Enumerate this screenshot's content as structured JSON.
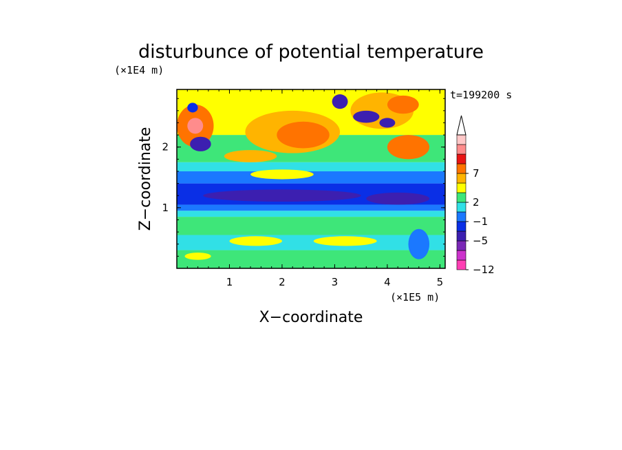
{
  "chart_data": {
    "type": "heatmap",
    "title": "disturbunce of potential temperature",
    "xlabel": "X−coordinate",
    "ylabel": "Z−coordinate",
    "x_unit": "(×1E5 m)",
    "y_unit": "(×1E4 m)",
    "time_label": "t=199200 s",
    "xlim": [
      0.0,
      5.1
    ],
    "ylim": [
      0.0,
      2.95
    ],
    "x_ticks": [
      1,
      2,
      3,
      4,
      5
    ],
    "y_ticks": [
      1,
      2
    ],
    "colorbar": {
      "tick_labels": [
        "7",
        "2",
        "−1",
        "−5",
        "−12"
      ],
      "tick_level_index": [
        10,
        7,
        5,
        3,
        0
      ],
      "colors": [
        "#ff3fb4",
        "#cc33cc",
        "#7a28b6",
        "#3c1fb0",
        "#0a2fe6",
        "#1b78ff",
        "#31e0e6",
        "#3ee679",
        "#ffff00",
        "#ffb400",
        "#ff7300",
        "#e81414",
        "#ff8c8c",
        "#ffc8c8"
      ],
      "extend_max": true
    },
    "bands": [
      {
        "z": [
          0.0,
          0.3
        ],
        "level": 7
      },
      {
        "z": [
          0.3,
          0.55
        ],
        "level": 6
      },
      {
        "z": [
          0.55,
          0.85
        ],
        "level": 7
      },
      {
        "z": [
          0.85,
          0.95
        ],
        "level": 6
      },
      {
        "z": [
          0.95,
          1.05
        ],
        "level": 5
      },
      {
        "z": [
          1.05,
          1.4
        ],
        "level": 4
      },
      {
        "z": [
          1.4,
          1.6
        ],
        "level": 5
      },
      {
        "z": [
          1.6,
          1.75
        ],
        "level": 6
      },
      {
        "z": [
          1.75,
          2.2
        ],
        "level": 7
      },
      {
        "z": [
          2.2,
          2.95
        ],
        "level": 8
      }
    ],
    "blobs": [
      {
        "x": 0.35,
        "z": 2.35,
        "rx": 0.35,
        "rz": 0.35,
        "level": 10
      },
      {
        "x": 0.35,
        "z": 2.35,
        "rx": 0.15,
        "rz": 0.13,
        "level": 12
      },
      {
        "x": 0.45,
        "z": 2.05,
        "rx": 0.2,
        "rz": 0.12,
        "level": 3
      },
      {
        "x": 0.3,
        "z": 2.65,
        "rx": 0.1,
        "rz": 0.08,
        "level": 4
      },
      {
        "x": 2.2,
        "z": 2.25,
        "rx": 0.9,
        "rz": 0.35,
        "level": 9
      },
      {
        "x": 2.4,
        "z": 2.2,
        "rx": 0.5,
        "rz": 0.22,
        "level": 10
      },
      {
        "x": 3.9,
        "z": 2.6,
        "rx": 0.6,
        "rz": 0.3,
        "level": 9
      },
      {
        "x": 4.3,
        "z": 2.7,
        "rx": 0.3,
        "rz": 0.15,
        "level": 10
      },
      {
        "x": 3.1,
        "z": 2.75,
        "rx": 0.15,
        "rz": 0.12,
        "level": 3
      },
      {
        "x": 3.6,
        "z": 2.5,
        "rx": 0.25,
        "rz": 0.1,
        "level": 3
      },
      {
        "x": 4.0,
        "z": 2.4,
        "rx": 0.15,
        "rz": 0.08,
        "level": 3
      },
      {
        "x": 4.4,
        "z": 2.0,
        "rx": 0.4,
        "rz": 0.2,
        "level": 10
      },
      {
        "x": 1.4,
        "z": 1.85,
        "rx": 0.5,
        "rz": 0.1,
        "level": 9
      },
      {
        "x": 2.0,
        "z": 1.55,
        "rx": 0.6,
        "rz": 0.08,
        "level": 8
      },
      {
        "x": 2.0,
        "z": 1.2,
        "rx": 1.5,
        "rz": 0.1,
        "level": 3
      },
      {
        "x": 4.2,
        "z": 1.15,
        "rx": 0.6,
        "rz": 0.1,
        "level": 3
      },
      {
        "x": 1.5,
        "z": 0.45,
        "rx": 0.5,
        "rz": 0.08,
        "level": 8
      },
      {
        "x": 3.2,
        "z": 0.45,
        "rx": 0.6,
        "rz": 0.08,
        "level": 8
      },
      {
        "x": 0.4,
        "z": 0.2,
        "rx": 0.25,
        "rz": 0.06,
        "level": 8
      },
      {
        "x": 4.6,
        "z": 0.4,
        "rx": 0.2,
        "rz": 0.25,
        "level": 5
      }
    ]
  }
}
